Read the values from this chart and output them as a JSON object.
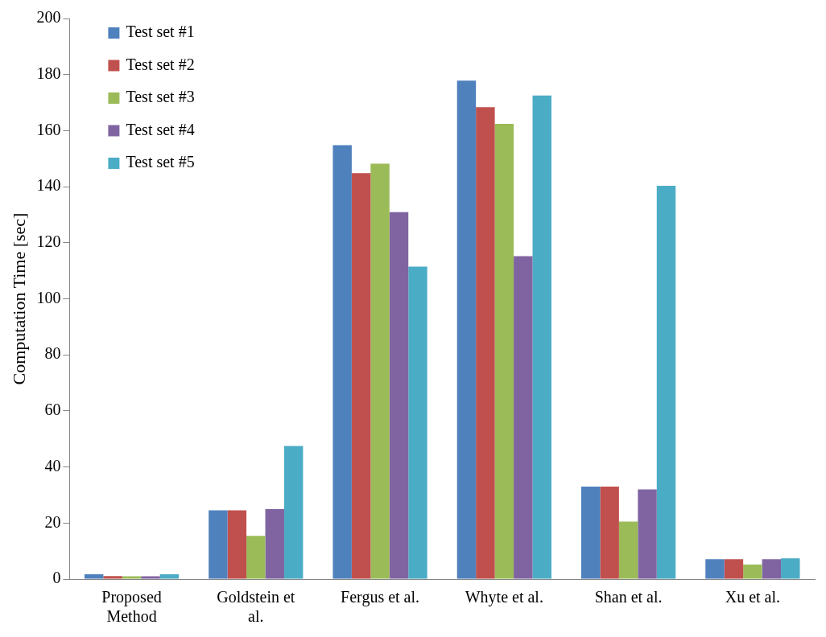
{
  "chart_data": {
    "type": "bar",
    "ylabel": "Computation Time [sec]",
    "categories": [
      "Proposed Method",
      "Goldstein et al.",
      "Fergus et al.",
      "Whyte et al.",
      "Shan et al.",
      "Xu et al."
    ],
    "series": [
      {
        "name": "Test set #1",
        "color": "#4f81bd",
        "values": [
          1.7,
          24.5,
          154.8,
          177.8,
          33,
          7.1
        ]
      },
      {
        "name": "Test set #2",
        "color": "#c0504d",
        "values": [
          1.1,
          24.5,
          144.8,
          168.4,
          33,
          7.1
        ]
      },
      {
        "name": "Test set #3",
        "color": "#9bbb59",
        "values": [
          1,
          15.4,
          148.2,
          162.4,
          20.5,
          5.2
        ]
      },
      {
        "name": "Test set #4",
        "color": "#8064a2",
        "values": [
          1,
          25,
          130.9,
          115.2,
          32,
          7.1
        ]
      },
      {
        "name": "Test set #5",
        "color": "#4bacc6",
        "values": [
          1.7,
          47.5,
          111.5,
          172.5,
          140.3,
          7.4
        ]
      }
    ],
    "ylim": [
      0,
      200
    ],
    "yticks": [
      0,
      20,
      40,
      60,
      80,
      100,
      120,
      140,
      160,
      180,
      200
    ],
    "grid": false,
    "legend": "top left"
  }
}
